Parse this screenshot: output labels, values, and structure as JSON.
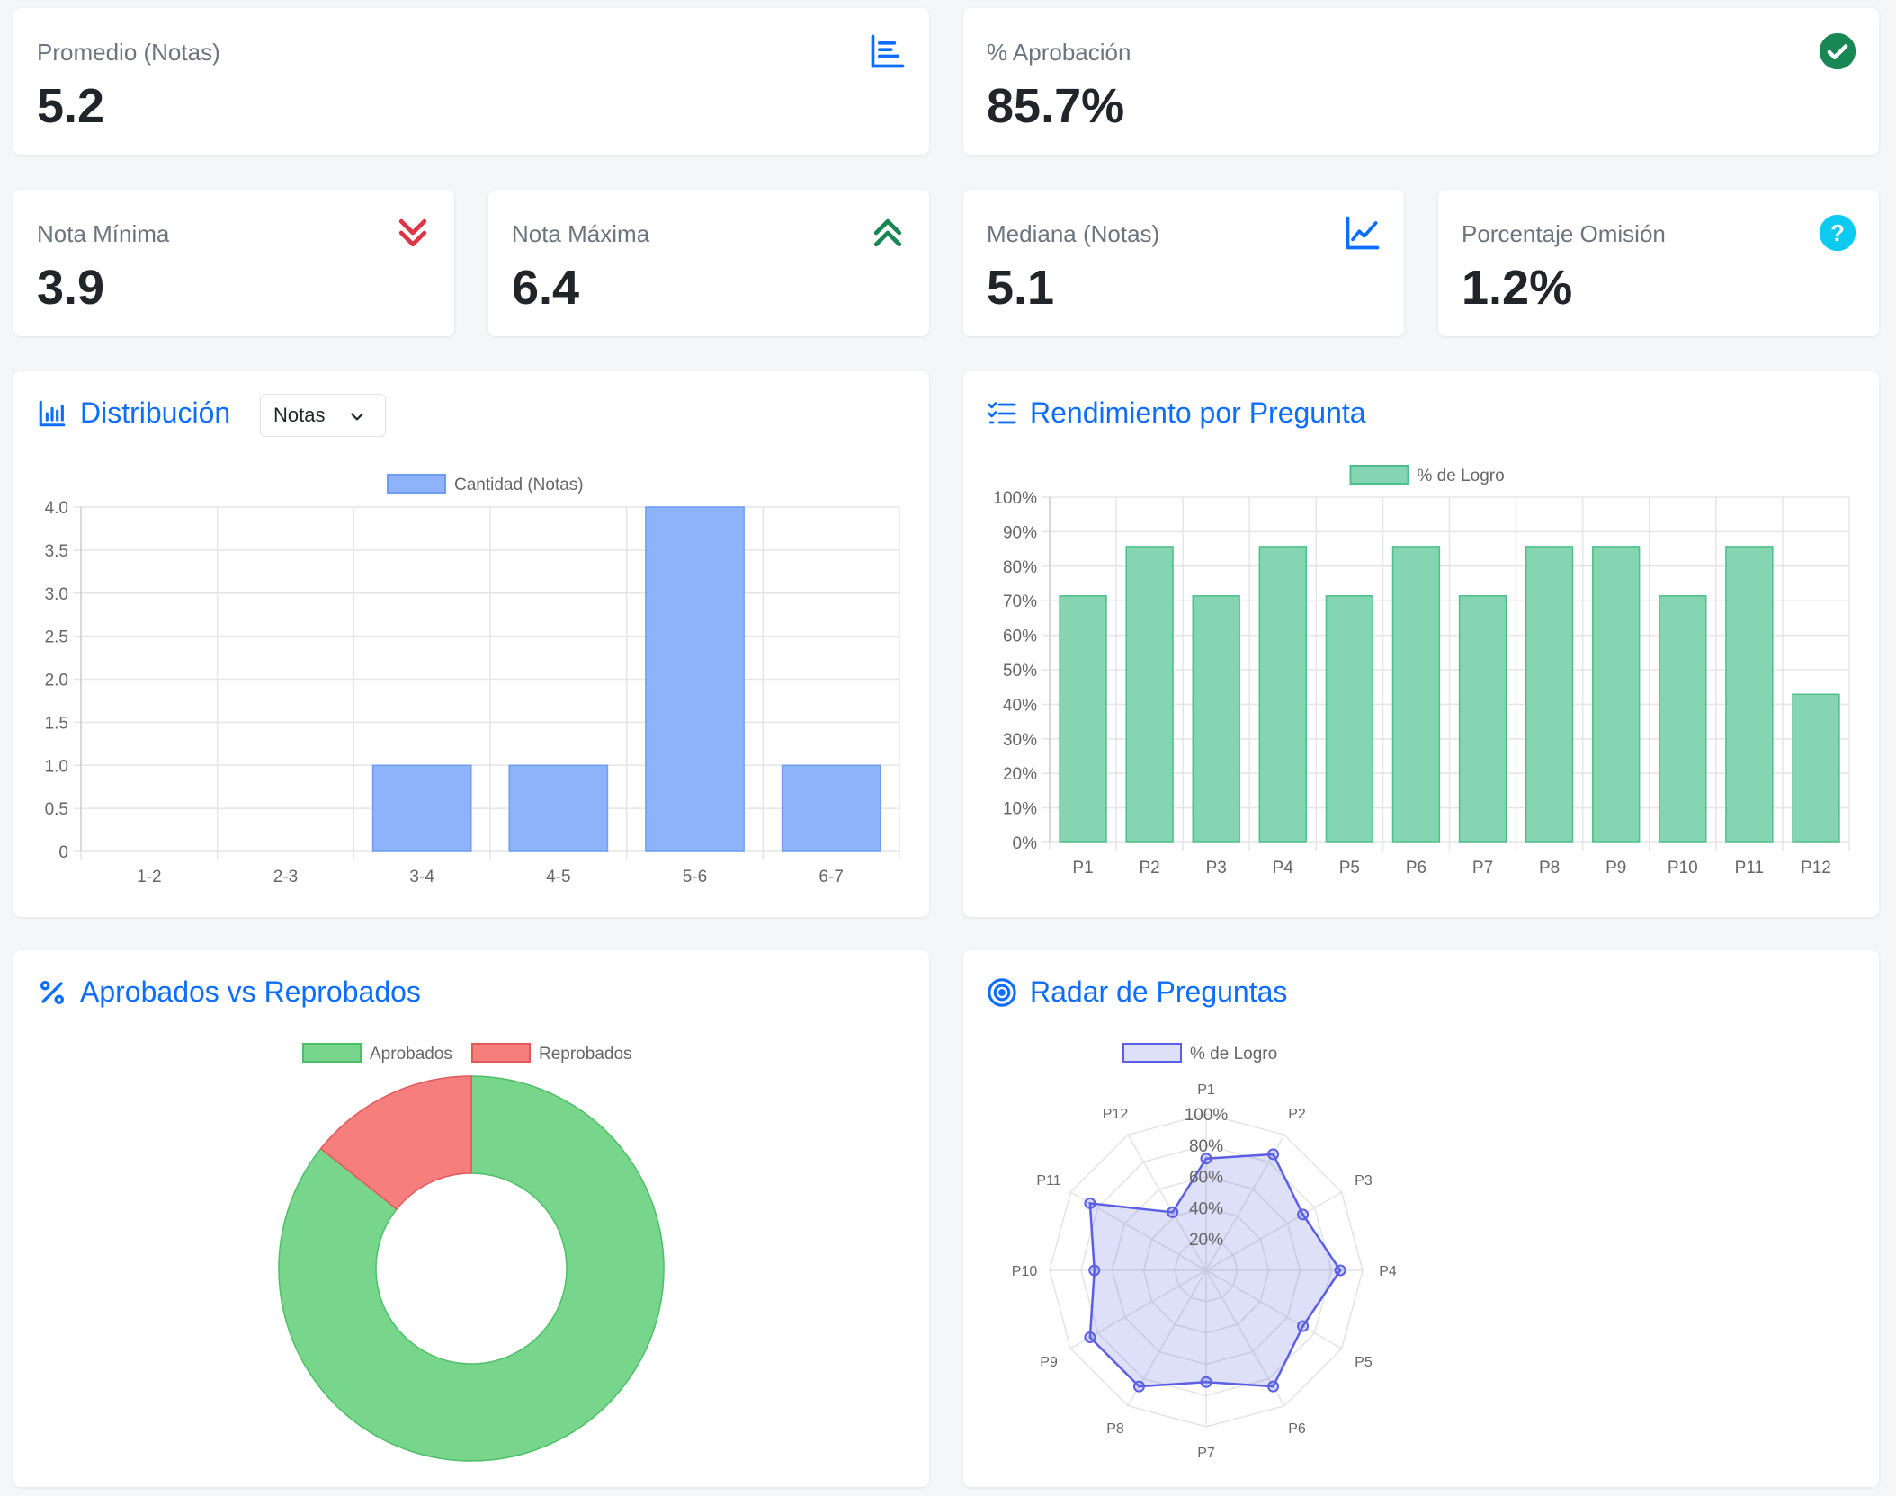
{
  "stats": {
    "promedio": {
      "label": "Promedio (Notas)",
      "value": "5.2",
      "icon": "bar-chart-icon"
    },
    "aprobacion": {
      "label": "% Aprobación",
      "value": "85.7%",
      "icon": "check-circle-icon"
    },
    "minima": {
      "label": "Nota Mínima",
      "value": "3.9",
      "icon": "double-chevron-down-icon"
    },
    "maxima": {
      "label": "Nota Máxima",
      "value": "6.4",
      "icon": "double-chevron-up-icon"
    },
    "mediana": {
      "label": "Mediana (Notas)",
      "value": "5.1",
      "icon": "line-chart-icon"
    },
    "omision": {
      "label": "Porcentaje Omisión",
      "value": "1.2%",
      "icon": "question-circle-icon"
    }
  },
  "colors": {
    "primary": "#0d6efd",
    "success": "#198754",
    "danger": "#dc3545",
    "info": "#0dcaf0",
    "bar_blue": "#8fb3fa",
    "bar_green": "#86d5b2",
    "pie_green": "#77d68c",
    "pie_red": "#f67e7d",
    "radar": "#5b5fe3"
  },
  "distribucion": {
    "title": "Distribución",
    "select_value": "Notas"
  },
  "rendimiento": {
    "title": "Rendimiento por Pregunta"
  },
  "aprobados": {
    "title": "Aprobados vs Reprobados"
  },
  "radar": {
    "title": "Radar de Preguntas"
  },
  "chart_data": [
    {
      "id": "distribucion",
      "type": "bar",
      "categories": [
        "1-2",
        "2-3",
        "3-4",
        "4-5",
        "5-6",
        "6-7"
      ],
      "series": [
        {
          "name": "Cantidad (Notas)",
          "values": [
            0,
            0,
            1,
            1,
            4,
            1
          ]
        }
      ],
      "ylim": [
        0,
        4
      ],
      "yticks": [
        "0",
        "0.5",
        "1.0",
        "1.5",
        "2.0",
        "2.5",
        "3.0",
        "3.5",
        "4.0"
      ],
      "grid": true,
      "legend": "top"
    },
    {
      "id": "rendimiento",
      "type": "bar",
      "categories": [
        "P1",
        "P2",
        "P3",
        "P4",
        "P5",
        "P6",
        "P7",
        "P8",
        "P9",
        "P10",
        "P11",
        "P12"
      ],
      "series": [
        {
          "name": "% de Logro",
          "values": [
            71.4,
            85.7,
            71.4,
            85.7,
            71.4,
            85.7,
            71.4,
            85.7,
            85.7,
            71.4,
            85.7,
            42.9
          ]
        }
      ],
      "ylim": [
        0,
        100
      ],
      "yticks": [
        "0%",
        "10%",
        "20%",
        "30%",
        "40%",
        "50%",
        "60%",
        "70%",
        "80%",
        "90%",
        "100%"
      ],
      "grid": true,
      "legend": "top"
    },
    {
      "id": "aprobados",
      "type": "pie",
      "labels": [
        "Aprobados",
        "Reprobados"
      ],
      "values": [
        6,
        1
      ],
      "legend": "top"
    },
    {
      "id": "radar",
      "type": "radar",
      "labels": [
        "P1",
        "P2",
        "P3",
        "P4",
        "P5",
        "P6",
        "P7",
        "P8",
        "P9",
        "P10",
        "P11",
        "P12"
      ],
      "series": [
        {
          "name": "% de Logro",
          "values": [
            71.4,
            85.7,
            71.4,
            85.7,
            71.4,
            85.7,
            71.4,
            85.7,
            85.7,
            71.4,
            85.7,
            42.9
          ]
        }
      ],
      "rticks": [
        "20%",
        "40%",
        "60%",
        "80%",
        "100%"
      ],
      "rlim": [
        0,
        100
      ],
      "legend": "top"
    }
  ]
}
